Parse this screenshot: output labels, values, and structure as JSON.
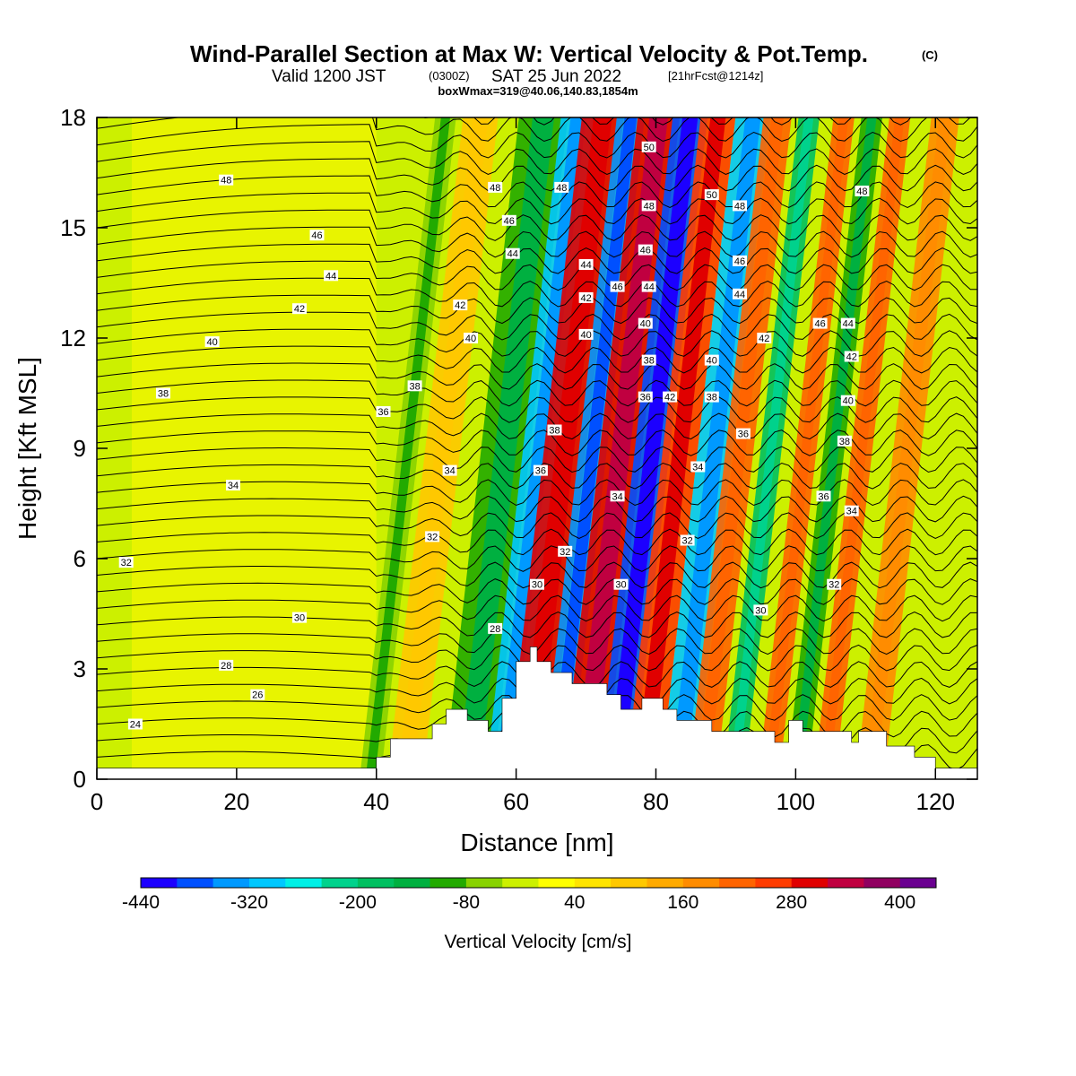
{
  "header": {
    "title": "Wind-Parallel Section at Max W: Vertical Velocity & Pot.Temp.",
    "title_mark": "(C)",
    "valid_prefix": "Valid 1200 JST",
    "valid_zone": "(0300Z)",
    "valid_date": "SAT 25 Jun 2022",
    "forecast": "[21hrFcst@1214z]",
    "box_info": "boxWmax=319@40.06,140.83,1854m"
  },
  "colors": {
    "terrain": "#ffffff",
    "frame": "#000000",
    "isotherm": "#000000"
  },
  "chart_data": {
    "type": "heatmap",
    "title": "Wind-Parallel Section at Max W: Vertical Velocity & Pot.Temp.",
    "xlabel": "Distance [nm]",
    "ylabel": "Height [Kft MSL]",
    "xlim": [
      0,
      126
    ],
    "ylim": [
      0,
      18
    ],
    "x_ticks": [
      0,
      20,
      40,
      60,
      80,
      100,
      120
    ],
    "y_ticks": [
      0,
      3,
      6,
      9,
      12,
      15,
      18
    ],
    "x_tick_labels": [
      "0",
      "20",
      "40",
      "60",
      "80",
      "100",
      "120"
    ],
    "y_tick_labels": [
      "0",
      "3",
      "6",
      "9",
      "12",
      "15",
      "18"
    ],
    "colorbar": {
      "title": "Vertical Velocity [cm/s]",
      "min": -440,
      "max": 440,
      "step": 40,
      "labeled_values": [
        -440,
        -320,
        -200,
        -80,
        40,
        160,
        280,
        400
      ],
      "labels": [
        "-440",
        "-320",
        "-200",
        "-80",
        "40",
        "160",
        "280",
        "400"
      ],
      "colors": [
        "#1c00ff",
        "#0050ff",
        "#0099ff",
        "#00c8ff",
        "#00f0e6",
        "#00d28c",
        "#00c060",
        "#00b040",
        "#22aa00",
        "#88d200",
        "#ccf000",
        "#ffff00",
        "#ffe400",
        "#ffc800",
        "#ffaa00",
        "#ff8c00",
        "#ff6400",
        "#ff3c00",
        "#e00000",
        "#c00040",
        "#900060",
        "#6a0090"
      ]
    },
    "terrain_profile": {
      "distance_nm": [
        0,
        40,
        40,
        42,
        42,
        48,
        48,
        50,
        50,
        53,
        53,
        56,
        56,
        58,
        58,
        60,
        60,
        62,
        62,
        63,
        63,
        65,
        65,
        68,
        68,
        70,
        70,
        73,
        73,
        75,
        75,
        78,
        78,
        81,
        81,
        83,
        83,
        86,
        86,
        88,
        88,
        92,
        92,
        97,
        97,
        99,
        99,
        101,
        101,
        104,
        104,
        108,
        108,
        109,
        109,
        110,
        110,
        113,
        113,
        117,
        117,
        120,
        120,
        126
      ],
      "height_kft": [
        0.3,
        0.3,
        0.6,
        0.6,
        1.1,
        1.1,
        1.5,
        1.5,
        1.9,
        1.9,
        1.6,
        1.6,
        1.3,
        1.3,
        2.2,
        2.2,
        3.2,
        3.2,
        3.6,
        3.6,
        3.2,
        3.2,
        2.9,
        2.9,
        2.6,
        2.6,
        2.6,
        2.6,
        2.3,
        2.3,
        1.9,
        1.9,
        2.2,
        2.2,
        1.9,
        1.9,
        1.6,
        1.6,
        1.6,
        1.6,
        1.3,
        1.3,
        1.3,
        1.3,
        1.0,
        1.0,
        1.6,
        1.6,
        1.3,
        1.3,
        1.3,
        1.3,
        1.0,
        1.0,
        1.3,
        1.3,
        1.3,
        1.3,
        0.9,
        0.9,
        0.6,
        0.6,
        0.3,
        0.3
      ]
    },
    "vertical_velocity_bands": [
      {
        "x_start": 0,
        "x_end": 40,
        "w_cm_s": 0
      },
      {
        "x_start": 43,
        "x_end": 46,
        "w_cm_s": -80
      },
      {
        "x_start": 47,
        "x_end": 52,
        "w_cm_s": 80
      },
      {
        "x_start": 55,
        "x_end": 62,
        "w_cm_s": -120
      },
      {
        "x_start": 61,
        "x_end": 66,
        "w_cm_s": -300
      },
      {
        "x_start": 64,
        "x_end": 70,
        "w_cm_s": 280
      },
      {
        "x_start": 69,
        "x_end": 73,
        "w_cm_s": -360
      },
      {
        "x_start": 72,
        "x_end": 78,
        "w_cm_s": 300
      },
      {
        "x_start": 77,
        "x_end": 82,
        "w_cm_s": -400
      },
      {
        "x_start": 81,
        "x_end": 86,
        "w_cm_s": 260
      },
      {
        "x_start": 86,
        "x_end": 91,
        "w_cm_s": -320
      },
      {
        "x_start": 90,
        "x_end": 94,
        "w_cm_s": 200
      },
      {
        "x_start": 95,
        "x_end": 98,
        "w_cm_s": -200
      },
      {
        "x_start": 100,
        "x_end": 103,
        "w_cm_s": 200
      },
      {
        "x_start": 104,
        "x_end": 107,
        "w_cm_s": -120
      },
      {
        "x_start": 108,
        "x_end": 111,
        "w_cm_s": 200
      },
      {
        "x_start": 114,
        "x_end": 118,
        "w_cm_s": 160
      }
    ],
    "potential_temperature_contours": {
      "units": "C",
      "levels": [
        24,
        26,
        28,
        30,
        32,
        34,
        36,
        38,
        40,
        42,
        44,
        46,
        48,
        50
      ],
      "labels": [
        {
          "text": "24",
          "x": 5.5,
          "y": 1.5
        },
        {
          "text": "26",
          "x": 23,
          "y": 2.3
        },
        {
          "text": "28",
          "x": 18.5,
          "y": 3.1
        },
        {
          "text": "30",
          "x": 29,
          "y": 4.4
        },
        {
          "text": "32",
          "x": 4.2,
          "y": 5.9
        },
        {
          "text": "34",
          "x": 19.5,
          "y": 8.0
        },
        {
          "text": "36",
          "x": 41,
          "y": 10.0
        },
        {
          "text": "38",
          "x": 9.5,
          "y": 10.5
        },
        {
          "text": "40",
          "x": 16.5,
          "y": 11.9
        },
        {
          "text": "42",
          "x": 29,
          "y": 12.8
        },
        {
          "text": "44",
          "x": 33.5,
          "y": 13.7
        },
        {
          "text": "46",
          "x": 31.5,
          "y": 14.8
        },
        {
          "text": "48",
          "x": 18.5,
          "y": 16.3
        },
        {
          "text": "38",
          "x": 45.5,
          "y": 10.7
        },
        {
          "text": "34",
          "x": 50.5,
          "y": 8.4
        },
        {
          "text": "32",
          "x": 48,
          "y": 6.6
        },
        {
          "text": "28",
          "x": 57,
          "y": 4.1
        },
        {
          "text": "30",
          "x": 63,
          "y": 5.3
        },
        {
          "text": "42",
          "x": 52,
          "y": 12.9
        },
        {
          "text": "40",
          "x": 53.5,
          "y": 12.0
        },
        {
          "text": "44",
          "x": 59.5,
          "y": 14.3
        },
        {
          "text": "46",
          "x": 59,
          "y": 15.2
        },
        {
          "text": "48",
          "x": 57,
          "y": 16.1
        },
        {
          "text": "48",
          "x": 66.5,
          "y": 16.1
        },
        {
          "text": "38",
          "x": 65.5,
          "y": 9.5
        },
        {
          "text": "36",
          "x": 63.5,
          "y": 8.4
        },
        {
          "text": "32",
          "x": 67,
          "y": 6.2
        },
        {
          "text": "44",
          "x": 70,
          "y": 14.0
        },
        {
          "text": "42",
          "x": 70,
          "y": 13.1
        },
        {
          "text": "40",
          "x": 70,
          "y": 12.1
        },
        {
          "text": "46",
          "x": 74.5,
          "y": 13.4
        },
        {
          "text": "34",
          "x": 74.5,
          "y": 7.7
        },
        {
          "text": "30",
          "x": 75,
          "y": 5.3
        },
        {
          "text": "50",
          "x": 79,
          "y": 17.2
        },
        {
          "text": "48",
          "x": 79,
          "y": 15.6
        },
        {
          "text": "46",
          "x": 78.5,
          "y": 14.4
        },
        {
          "text": "44",
          "x": 79,
          "y": 13.4
        },
        {
          "text": "40",
          "x": 78.5,
          "y": 12.4
        },
        {
          "text": "38",
          "x": 79,
          "y": 11.4
        },
        {
          "text": "36",
          "x": 78.5,
          "y": 10.4
        },
        {
          "text": "42",
          "x": 82,
          "y": 10.4
        },
        {
          "text": "34",
          "x": 86,
          "y": 8.5
        },
        {
          "text": "32",
          "x": 84.5,
          "y": 6.5
        },
        {
          "text": "50",
          "x": 88,
          "y": 15.9
        },
        {
          "text": "48",
          "x": 92,
          "y": 15.6
        },
        {
          "text": "46",
          "x": 92,
          "y": 14.1
        },
        {
          "text": "44",
          "x": 92,
          "y": 13.2
        },
        {
          "text": "40",
          "x": 88,
          "y": 11.4
        },
        {
          "text": "38",
          "x": 88,
          "y": 10.4
        },
        {
          "text": "42",
          "x": 95.5,
          "y": 12.0
        },
        {
          "text": "36",
          "x": 92.5,
          "y": 9.4
        },
        {
          "text": "30",
          "x": 95,
          "y": 4.6
        },
        {
          "text": "48",
          "x": 109.5,
          "y": 16.0
        },
        {
          "text": "46",
          "x": 103.5,
          "y": 12.4
        },
        {
          "text": "44",
          "x": 107.5,
          "y": 12.4
        },
        {
          "text": "42",
          "x": 108,
          "y": 11.5
        },
        {
          "text": "40",
          "x": 107.5,
          "y": 10.3
        },
        {
          "text": "38",
          "x": 107,
          "y": 9.2
        },
        {
          "text": "36",
          "x": 104,
          "y": 7.7
        },
        {
          "text": "34",
          "x": 108,
          "y": 7.3
        },
        {
          "text": "32",
          "x": 105.5,
          "y": 5.3
        }
      ]
    }
  }
}
